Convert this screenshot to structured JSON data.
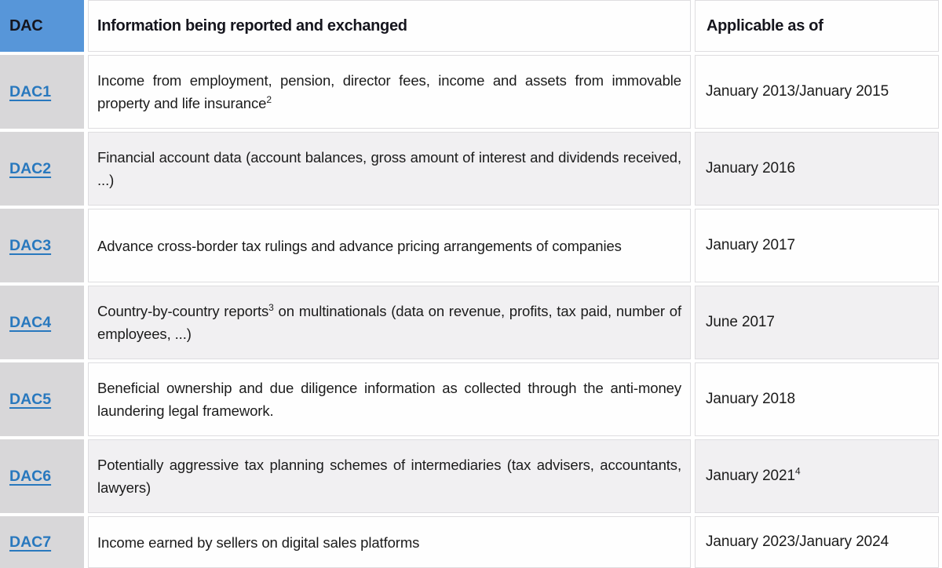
{
  "table": {
    "headers": [
      "DAC",
      "Information being reported and exchanged",
      "Applicable as of"
    ],
    "rows": [
      {
        "dac": "DAC1",
        "info": [
          {
            "t": "Income from employment, pension, director fees, income and assets from immovable property and life insurance"
          },
          {
            "sup": "2"
          }
        ],
        "date": [
          {
            "t": "January 2013/January 2015"
          }
        ]
      },
      {
        "dac": "DAC2",
        "info": [
          {
            "t": "Financial account data (account balances, gross amount of interest and dividends received, ...)"
          }
        ],
        "date": [
          {
            "t": "January 2016"
          }
        ]
      },
      {
        "dac": "DAC3",
        "info": [
          {
            "t": "Advance cross-border tax rulings and advance pricing arrangements of companies"
          }
        ],
        "date": [
          {
            "t": "January 2017"
          }
        ]
      },
      {
        "dac": "DAC4",
        "info": [
          {
            "t": "Country-by-country reports"
          },
          {
            "sup": "3"
          },
          {
            "t": " on multinationals (data on revenue, profits, tax paid, number of employees, ...)"
          }
        ],
        "date": [
          {
            "t": "June 2017"
          }
        ]
      },
      {
        "dac": "DAC5",
        "info": [
          {
            "t": "Beneficial ownership and due diligence information as collected through the anti-money laundering legal framework."
          }
        ],
        "date": [
          {
            "t": "January 2018"
          }
        ]
      },
      {
        "dac": "DAC6",
        "info": [
          {
            "t": "Potentially aggressive tax planning schemes of intermediaries (tax advisers, accountants, lawyers)"
          }
        ],
        "date": [
          {
            "t": "January 2021"
          },
          {
            "sup": "4"
          }
        ]
      },
      {
        "dac": "DAC7",
        "info": [
          {
            "t": "Income earned by sellers on digital sales platforms"
          }
        ],
        "date": [
          {
            "t": "January 2023/January 2024"
          }
        ]
      }
    ]
  },
  "colors": {
    "header_bg": "#5796d9",
    "header_text": "#15151d",
    "dac_column_bg": "#d8d7d9",
    "row_shade": "#f1f0f2",
    "cell_border": "#dedde0",
    "link_blue": "#2878be",
    "body_text": "#1b1b1b"
  }
}
